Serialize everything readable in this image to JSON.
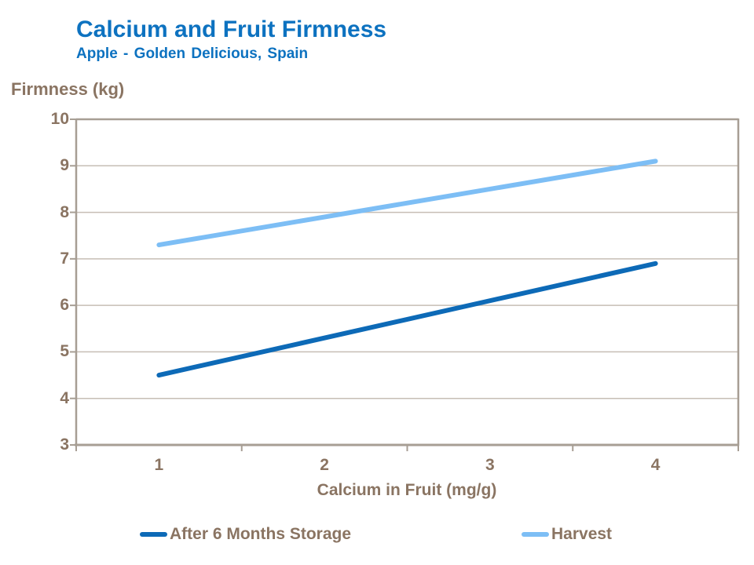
{
  "colors": {
    "title_blue": "#0D72C0",
    "label_brown": "#8A7462",
    "axis_line": "#A79E94",
    "gridline": "#C6BEB5",
    "background": "#FFFFFF",
    "series_after_storage": "#0D6AB7",
    "series_harvest": "#7DBEF5"
  },
  "chart_data": {
    "type": "line",
    "title": "Calcium and Fruit Firmness",
    "subtitle": "Apple - Golden Delicious, Spain",
    "xlabel": "Calcium in Fruit (mg/g)",
    "ylabel": "Firmness (kg)",
    "x_ticks": [
      1,
      2,
      3,
      4
    ],
    "y_ticks": [
      10,
      9,
      8,
      7,
      6,
      5,
      4,
      3
    ],
    "ylim": [
      3,
      10
    ],
    "xlim": [
      1,
      4
    ],
    "grid": "horizontal",
    "legend_position": "bottom-center",
    "series": [
      {
        "name": "After 6 Months Storage",
        "color": "#0D6AB7",
        "points": [
          [
            1,
            4.5
          ],
          [
            4,
            6.9
          ]
        ]
      },
      {
        "name": "Harvest",
        "color": "#7DBEF5",
        "points": [
          [
            1,
            7.3
          ],
          [
            4,
            9.1
          ]
        ]
      }
    ]
  }
}
